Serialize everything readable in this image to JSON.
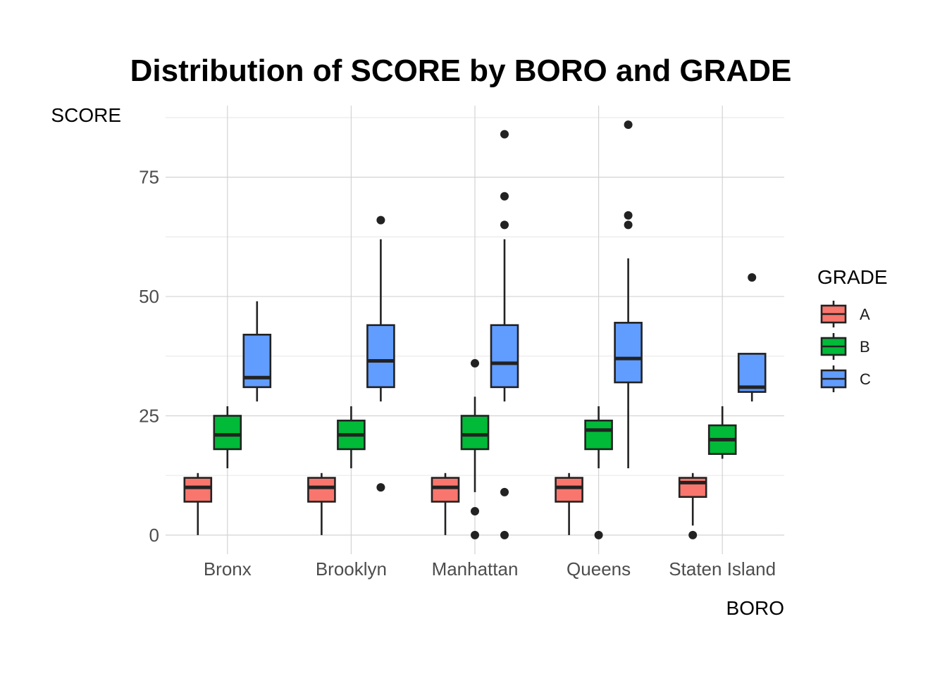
{
  "chart_data": {
    "type": "boxplot",
    "title": "Distribution of SCORE by BORO and GRADE",
    "xlabel": "BORO",
    "ylabel": "SCORE",
    "categories": [
      "Bronx",
      "Brooklyn",
      "Manhattan",
      "Queens",
      "Staten Island"
    ],
    "ylim": [
      -4,
      90
    ],
    "yticks": [
      0,
      25,
      50,
      75
    ],
    "grid": true,
    "legend": {
      "title": "GRADE",
      "position": "right",
      "entries": [
        {
          "name": "A",
          "color": "#F8766D"
        },
        {
          "name": "B",
          "color": "#00BA38"
        },
        {
          "name": "C",
          "color": "#619CFF"
        }
      ]
    },
    "series": [
      {
        "name": "A",
        "color": "#F8766D",
        "boxes": [
          {
            "category": "Bronx",
            "whisker_low": 0,
            "q1": 7,
            "median": 10,
            "q3": 12,
            "whisker_high": 13,
            "outliers": []
          },
          {
            "category": "Brooklyn",
            "whisker_low": 0,
            "q1": 7,
            "median": 10,
            "q3": 12,
            "whisker_high": 13,
            "outliers": []
          },
          {
            "category": "Manhattan",
            "whisker_low": 0,
            "q1": 7,
            "median": 10,
            "q3": 12,
            "whisker_high": 13,
            "outliers": []
          },
          {
            "category": "Queens",
            "whisker_low": 0,
            "q1": 7,
            "median": 10,
            "q3": 12,
            "whisker_high": 13,
            "outliers": []
          },
          {
            "category": "Staten Island",
            "whisker_low": 2,
            "q1": 8,
            "median": 11,
            "q3": 12,
            "whisker_high": 13,
            "outliers": [
              0
            ]
          }
        ]
      },
      {
        "name": "B",
        "color": "#00BA38",
        "boxes": [
          {
            "category": "Bronx",
            "whisker_low": 14,
            "q1": 18,
            "median": 21,
            "q3": 25,
            "whisker_high": 27,
            "outliers": []
          },
          {
            "category": "Brooklyn",
            "whisker_low": 14,
            "q1": 18,
            "median": 21,
            "q3": 24,
            "whisker_high": 27,
            "outliers": []
          },
          {
            "category": "Manhattan",
            "whisker_low": 9,
            "q1": 18,
            "median": 21,
            "q3": 25,
            "whisker_high": 29,
            "outliers": [
              36,
              5,
              0
            ]
          },
          {
            "category": "Queens",
            "whisker_low": 14,
            "q1": 18,
            "median": 22,
            "q3": 24,
            "whisker_high": 27,
            "outliers": [
              0
            ]
          },
          {
            "category": "Staten Island",
            "whisker_low": 16,
            "q1": 17,
            "median": 20,
            "q3": 23,
            "whisker_high": 27,
            "outliers": []
          }
        ]
      },
      {
        "name": "C",
        "color": "#619CFF",
        "boxes": [
          {
            "category": "Bronx",
            "whisker_low": 28,
            "q1": 31,
            "median": 33,
            "q3": 42,
            "whisker_high": 49,
            "outliers": []
          },
          {
            "category": "Brooklyn",
            "whisker_low": 28,
            "q1": 31,
            "median": 36.5,
            "q3": 44,
            "whisker_high": 62,
            "outliers": [
              66,
              10
            ]
          },
          {
            "category": "Manhattan",
            "whisker_low": 28,
            "q1": 31,
            "median": 36,
            "q3": 44,
            "whisker_high": 62,
            "outliers": [
              84,
              71,
              65,
              9,
              0
            ]
          },
          {
            "category": "Queens",
            "whisker_low": 14,
            "q1": 32,
            "median": 37,
            "q3": 44.5,
            "whisker_high": 58,
            "outliers": [
              86,
              67,
              65
            ]
          },
          {
            "category": "Staten Island",
            "whisker_low": 28,
            "q1": 30,
            "median": 31,
            "q3": 38,
            "whisker_high": 38,
            "outliers": [
              54
            ]
          }
        ]
      }
    ]
  }
}
